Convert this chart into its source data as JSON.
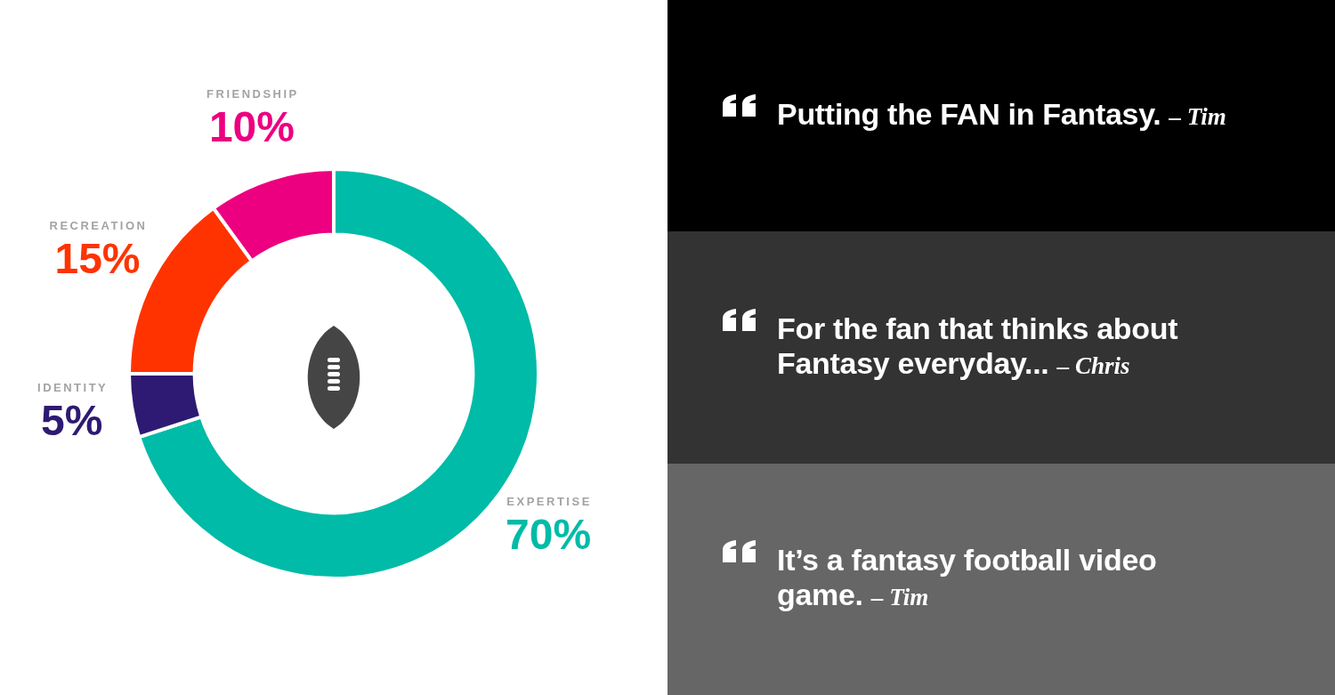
{
  "chart_data": [
    {
      "type": "donut",
      "categories": [
        "EXPERTISE",
        "IDENTITY",
        "RECREATION",
        "FRIENDSHIP"
      ],
      "values": [
        70,
        5,
        15,
        10
      ],
      "colors": [
        "#00bba7",
        "#2e1a72",
        "#ff3300",
        "#ec0080"
      ],
      "value_labels": [
        "70%",
        "5%",
        "15%",
        "10%"
      ]
    },
    {
      "type": "other",
      "annotations": [
        "Putting the FAN in Fantasy.",
        "– Tim",
        "For the fan that thinks about Fantasy everyday...",
        "– Chris",
        "It’s a fantasy football video game.",
        "– Tim"
      ]
    }
  ]
}
